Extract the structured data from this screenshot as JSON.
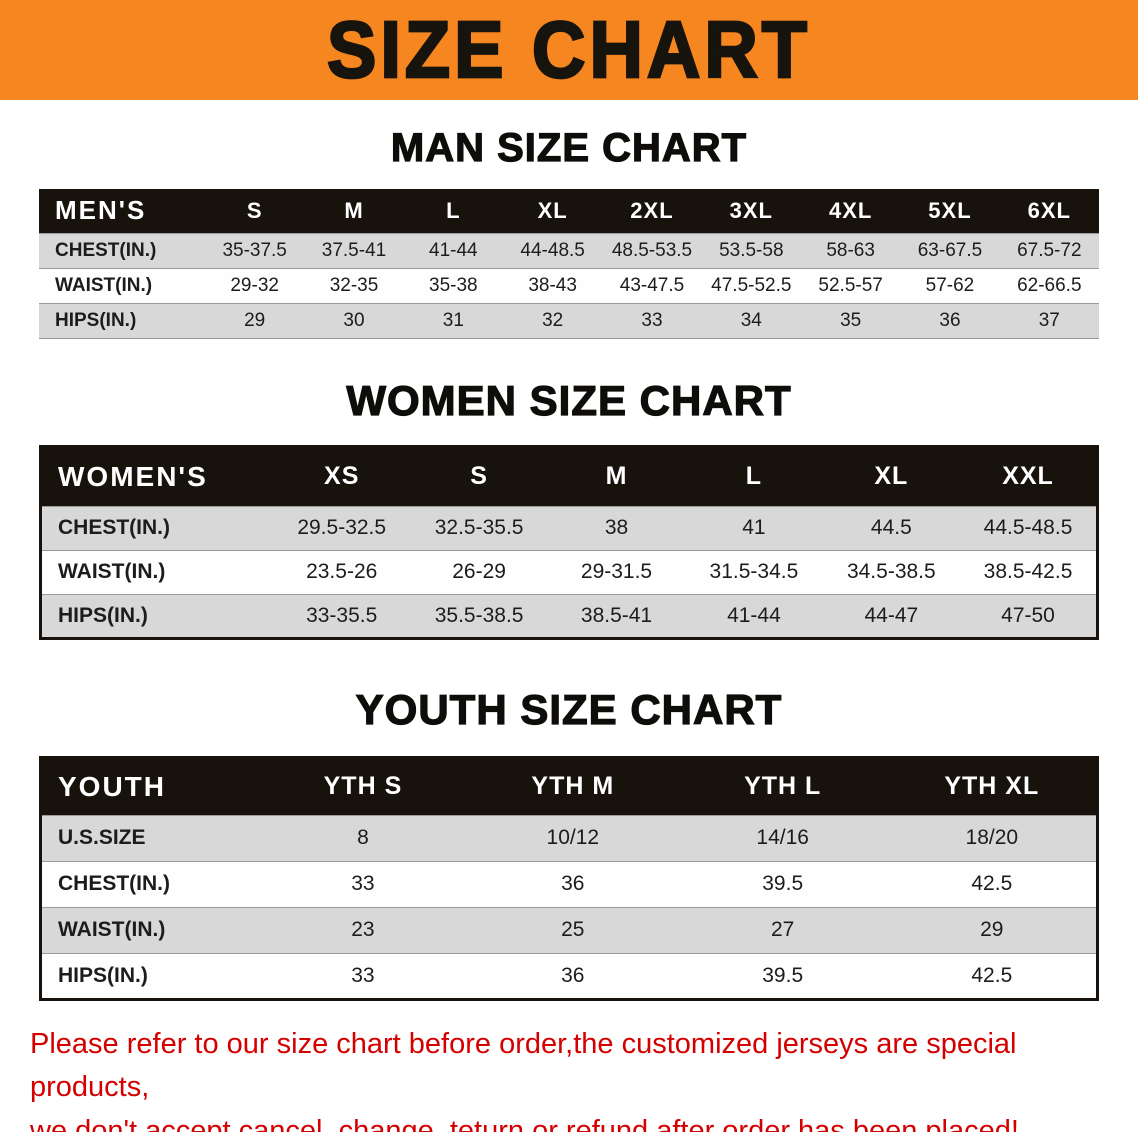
{
  "theme": {
    "banner_bg": "#f6861f",
    "header_bg": "#17130c",
    "stripe_gray": "#d8d8d8",
    "note_red": "#d40000"
  },
  "banner": {
    "title": "SIZE CHART"
  },
  "sections": [
    {
      "heading": "MAN SIZE CHART",
      "table": {
        "header": [
          "MEN'S",
          "S",
          "M",
          "L",
          "XL",
          "2XL",
          "3XL",
          "4XL",
          "5XL",
          "6XL"
        ],
        "rows": [
          {
            "label": "CHEST(IN.)",
            "values": [
              "35-37.5",
              "37.5-41",
              "41-44",
              "44-48.5",
              "48.5-53.5",
              "53.5-58",
              "58-63",
              "63-67.5",
              "67.5-72"
            ]
          },
          {
            "label": "WAIST(IN.)",
            "values": [
              "29-32",
              "32-35",
              "35-38",
              "38-43",
              "43-47.5",
              "47.5-52.5",
              "52.5-57",
              "57-62",
              "62-66.5"
            ]
          },
          {
            "label": "HIPS(IN.)",
            "values": [
              "29",
              "30",
              "31",
              "32",
              "33",
              "34",
              "35",
              "36",
              "37"
            ]
          }
        ]
      }
    },
    {
      "heading": "WOMEN SIZE CHART",
      "table": {
        "header": [
          "WOMEN'S",
          "XS",
          "S",
          "M",
          "L",
          "XL",
          "XXL"
        ],
        "rows": [
          {
            "label": "CHEST(IN.)",
            "values": [
              "29.5-32.5",
              "32.5-35.5",
              "38",
              "41",
              "44.5",
              "44.5-48.5"
            ]
          },
          {
            "label": "WAIST(IN.)",
            "values": [
              "23.5-26",
              "26-29",
              "29-31.5",
              "31.5-34.5",
              "34.5-38.5",
              "38.5-42.5"
            ]
          },
          {
            "label": "HIPS(IN.)",
            "values": [
              "33-35.5",
              "35.5-38.5",
              "38.5-41",
              "41-44",
              "44-47",
              "47-50"
            ]
          }
        ]
      }
    },
    {
      "heading": "YOUTH SIZE CHART",
      "table": {
        "header": [
          "YOUTH",
          "YTH S",
          "YTH M",
          "YTH L",
          "YTH XL"
        ],
        "rows": [
          {
            "label": "U.S.SIZE",
            "values": [
              "8",
              "10/12",
              "14/16",
              "18/20"
            ]
          },
          {
            "label": "CHEST(IN.)",
            "values": [
              "33",
              "36",
              "39.5",
              "42.5"
            ]
          },
          {
            "label": "WAIST(IN.)",
            "values": [
              "23",
              "25",
              "27",
              "29"
            ]
          },
          {
            "label": "HIPS(IN.)",
            "values": [
              "33",
              "36",
              "39.5",
              "42.5"
            ]
          }
        ]
      }
    }
  ],
  "note": {
    "lines": [
      "Please refer to our size chart before order,the customized jerseys are special products,",
      "we don't accept cancel, change, teturn or refund after order has been placed!"
    ]
  }
}
